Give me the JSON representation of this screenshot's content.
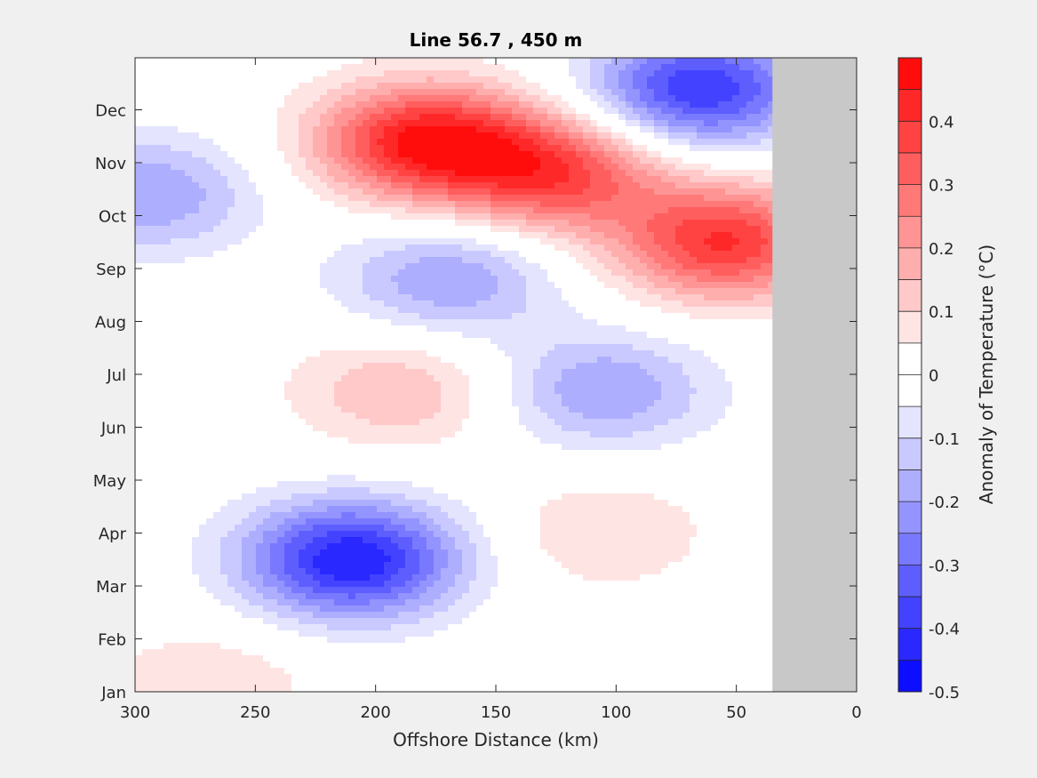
{
  "chart_data": {
    "type": "heatmap",
    "subtype": "filled-contour",
    "title": "Line 56.7 , 450 m",
    "xlabel": "Offshore Distance (km)",
    "ylabel": "",
    "colorbar_label": "Anomaly of Temperature (°C)",
    "xlim": [
      300,
      0
    ],
    "x_reversed": true,
    "xticks": [
      300,
      250,
      200,
      150,
      100,
      50,
      0
    ],
    "yticks": [
      "Jan",
      "Feb",
      "Mar",
      "Apr",
      "May",
      "Jun",
      "Jul",
      "Aug",
      "Sep",
      "Oct",
      "Nov",
      "Dec"
    ],
    "clim": [
      -0.5,
      0.5
    ],
    "contour_interval": 0.05,
    "colorbar_ticks": [
      -0.5,
      -0.4,
      -0.3,
      -0.2,
      -0.1,
      0,
      0.1,
      0.2,
      0.3,
      0.4
    ],
    "colorbar_tick_labels": [
      "-0.5",
      "-0.4",
      "-0.3",
      "-0.2",
      "-0.1",
      "0",
      "0.1",
      "0.2",
      "0.3",
      "0.4"
    ],
    "no_data_region_km": [
      0,
      35
    ],
    "colormap": {
      "negative_end": "#0000ff",
      "zero": "#ffffff",
      "positive_end": "#ff0000",
      "no_data": "#c8c8c8"
    },
    "features": [
      {
        "label": "warm band",
        "dist_km": 180,
        "month": 10.4,
        "value": 0.45
      },
      {
        "label": "warm band",
        "dist_km": 125,
        "month": 9.8,
        "value": 0.35
      },
      {
        "label": "warm core",
        "dist_km": 55,
        "month": 8.5,
        "value": 0.4
      },
      {
        "label": "cold core",
        "dist_km": 210,
        "month": 2.5,
        "value": -0.45
      },
      {
        "label": "cold band",
        "dist_km": 65,
        "month": 11.4,
        "value": -0.4
      },
      {
        "label": "cold",
        "dist_km": 170,
        "month": 7.8,
        "value": -0.2
      },
      {
        "label": "cold",
        "dist_km": 105,
        "month": 5.7,
        "value": -0.2
      },
      {
        "label": "warm",
        "dist_km": 190,
        "month": 5.7,
        "value": 0.15
      },
      {
        "label": "warm",
        "dist_km": 105,
        "month": 3.0,
        "value": 0.1
      },
      {
        "label": "cold",
        "dist_km": 295,
        "month": 9.4,
        "value": -0.2
      },
      {
        "label": "warm",
        "dist_km": 270,
        "month": 0.1,
        "value": 0.1
      }
    ]
  }
}
